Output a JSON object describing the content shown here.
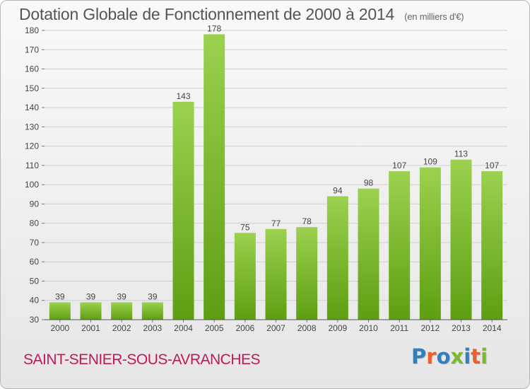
{
  "header": {
    "title": "Dotation Globale de Fonctionnement de 2000 à 2014",
    "unit_note": "(en milliers d'€)"
  },
  "footer": {
    "commune": "SAINT-SENIER-SOUS-AVRANCHES",
    "logo_text": "Proxiti"
  },
  "colors": {
    "bar_light": "#9bd14f",
    "bar_dark": "#5e9e12",
    "commune_text": "#c2185b",
    "logo_letters": [
      "#2f7fc1",
      "#e8602c",
      "#2f7fc1",
      "#7cb82f",
      "#2f7fc1",
      "#e8602c",
      "#7cb82f"
    ]
  },
  "chart_data": {
    "type": "bar",
    "title": "Dotation Globale de Fonctionnement de 2000 à 2014",
    "subtitle": "(en milliers d'€)",
    "xlabel": "",
    "ylabel": "",
    "categories": [
      "2000",
      "2001",
      "2002",
      "2003",
      "2004",
      "2005",
      "2006",
      "2007",
      "2008",
      "2009",
      "2010",
      "2011",
      "2012",
      "2013",
      "2014"
    ],
    "values": [
      39,
      39,
      39,
      39,
      143,
      178,
      75,
      77,
      78,
      94,
      98,
      107,
      109,
      113,
      107
    ],
    "ylim": [
      30,
      180
    ],
    "yticks": [
      30,
      40,
      50,
      60,
      70,
      80,
      90,
      100,
      110,
      120,
      130,
      140,
      150,
      160,
      170,
      180
    ],
    "grid": true,
    "data_labels": true
  }
}
